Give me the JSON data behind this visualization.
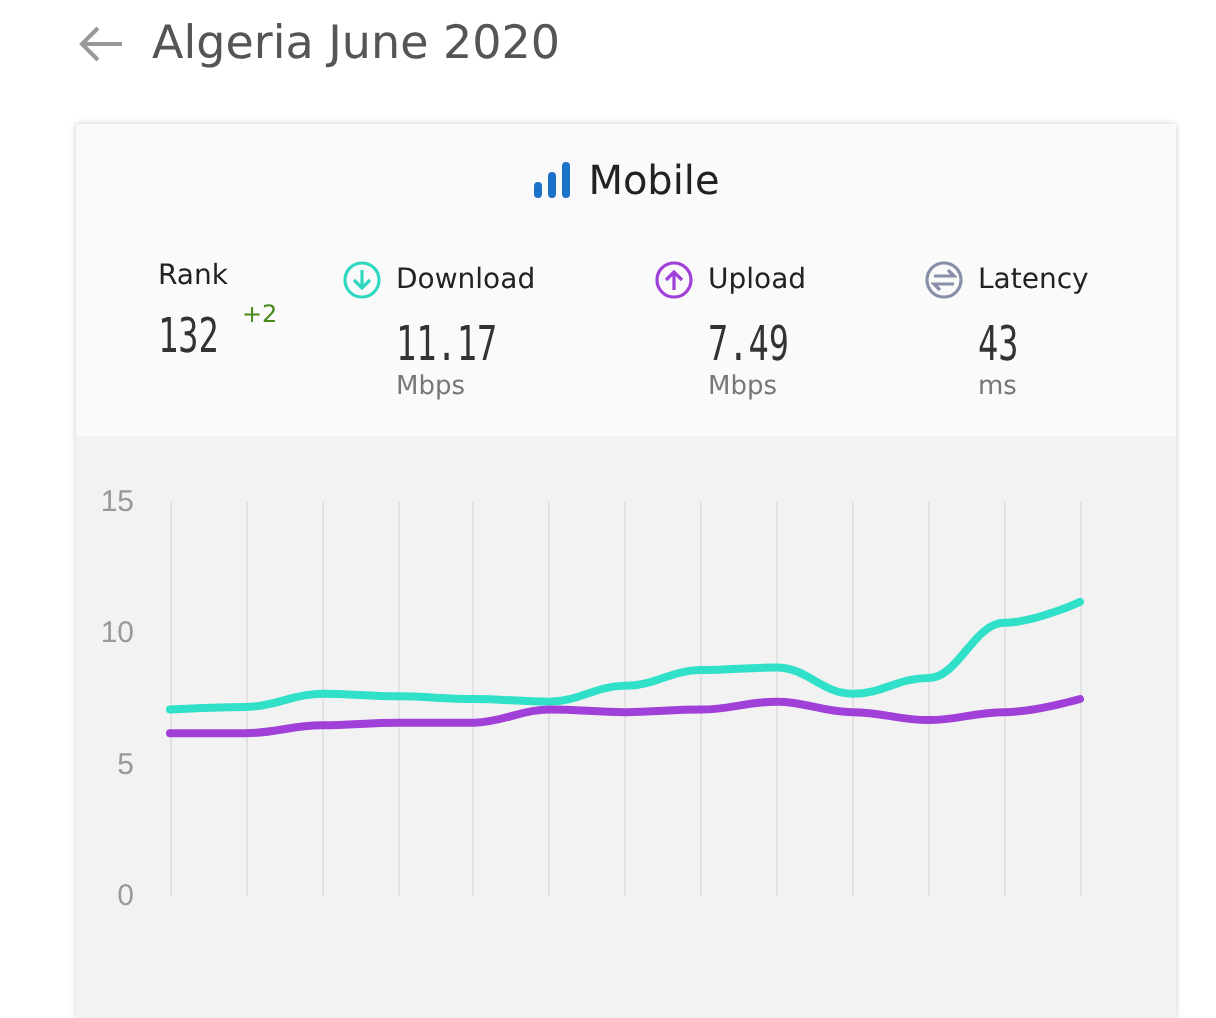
{
  "chart_data": {
    "type": "line",
    "title": "Algeria June 2020",
    "subtitle": "Mobile",
    "annotations": [
      "Rank",
      "132",
      "+2",
      "Download",
      "11.17",
      "Mbps",
      "Upload",
      "7.49",
      "Mbps",
      "Latency",
      "43",
      "ms"
    ],
    "categories": [
      null,
      null,
      null,
      null,
      null,
      null,
      null,
      null,
      null,
      null,
      null,
      null,
      null
    ],
    "series": [
      {
        "color": "#30e0c8",
        "values": [
          7.1,
          7.2,
          7.7,
          7.6,
          7.5,
          7.4,
          8.0,
          8.6,
          8.7,
          7.7,
          8.3,
          10.4,
          11.2
        ]
      },
      {
        "color": "#a040d8",
        "values": [
          6.2,
          6.2,
          6.5,
          6.6,
          6.6,
          7.1,
          7.0,
          7.1,
          7.4,
          7.0,
          6.7,
          7.0,
          7.5
        ]
      }
    ],
    "ylim": [
      0,
      15
    ],
    "yticks": [
      0,
      5,
      10,
      15
    ],
    "grid": "x",
    "marker": "none",
    "line_style": "solid"
  }
}
